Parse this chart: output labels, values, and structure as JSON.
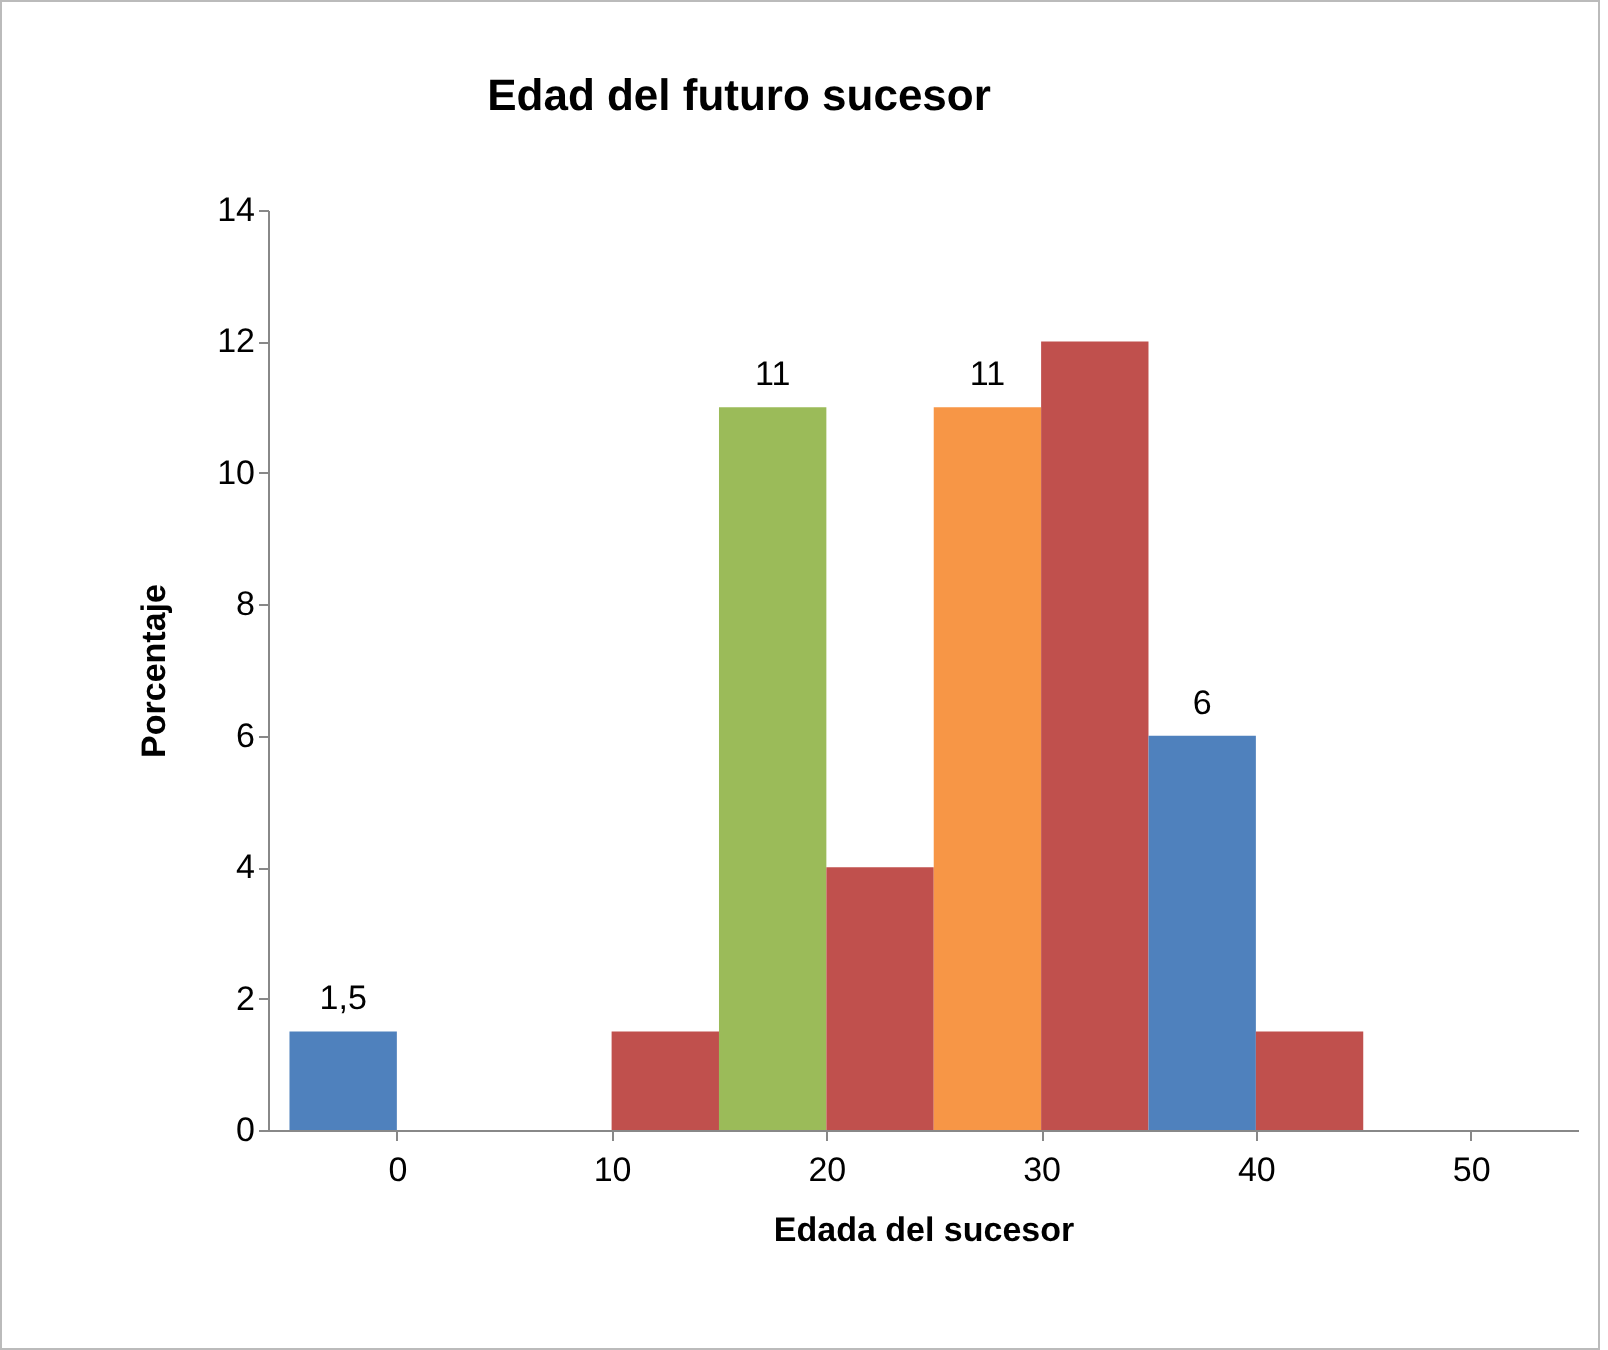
{
  "chart_data": {
    "type": "histogram",
    "title": "Edad del futuro sucesor",
    "xlabel": "Edada del sucesor",
    "ylabel": "Porcentaje",
    "bins": [
      -5,
      0,
      5,
      10,
      15,
      20,
      25,
      30,
      35,
      40,
      45
    ],
    "values": [
      1.5,
      0,
      0,
      1.5,
      11,
      4,
      11,
      12,
      6,
      1.5
    ],
    "colors": [
      "#4f81bd",
      "#4f81bd",
      "#4f81bd",
      "#c0504d",
      "#9bbb59",
      "#c0504d",
      "#f79646",
      "#c0504d",
      "#4f81bd",
      "#c0504d"
    ],
    "value_labels": [
      "1,5",
      null,
      null,
      null,
      "11",
      null,
      "11",
      null,
      "6",
      null
    ],
    "xlim": [
      -6,
      55
    ],
    "xticks": [
      0,
      10,
      20,
      30,
      40,
      50
    ],
    "ylim": [
      0,
      14
    ],
    "yticks": [
      0,
      2,
      4,
      6,
      8,
      10,
      12,
      14
    ],
    "grid": false
  }
}
